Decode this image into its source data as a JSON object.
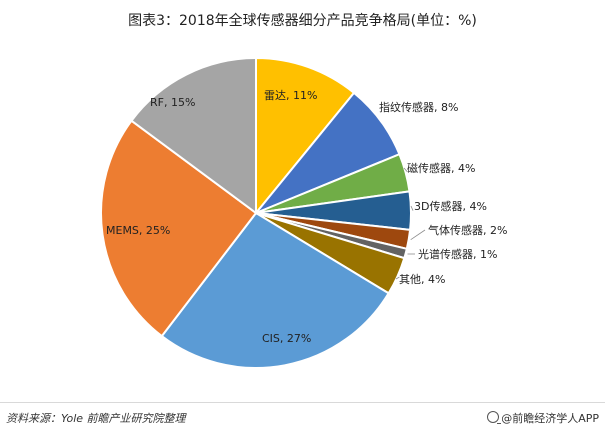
{
  "chart_data": {
    "type": "pie",
    "title": "图表3：2018年全球传感器细分产品竞争格局(单位：%)",
    "slices": [
      {
        "name": "雷达",
        "value": 11,
        "label": "雷达, 11%",
        "color": "#FFC000"
      },
      {
        "name": "指纹传感器",
        "value": 8,
        "label": "指纹传感器, 8%",
        "color": "#4472C4"
      },
      {
        "name": "磁传感器",
        "value": 4,
        "label": "磁传感器, 4%",
        "color": "#70AD47"
      },
      {
        "name": "3D传感器",
        "value": 4,
        "label": "3D传感器, 4%",
        "color": "#255E91"
      },
      {
        "name": "气体传感器",
        "value": 2,
        "label": "气体传感器, 2%",
        "color": "#9E480E"
      },
      {
        "name": "光谱传感器",
        "value": 1,
        "label": "光谱传感器, 1%",
        "color": "#636363"
      },
      {
        "name": "其他",
        "value": 4,
        "label": "其他, 4%",
        "color": "#997300"
      },
      {
        "name": "CIS",
        "value": 27,
        "label": "CIS, 27%",
        "color": "#5B9BD5"
      },
      {
        "name": "MEMS",
        "value": 25,
        "label": "MEMS, 25%",
        "color": "#ED7D31"
      },
      {
        "name": "RF",
        "value": 15,
        "label": "RF, 15%",
        "color": "#A5A5A5"
      }
    ]
  },
  "footer": {
    "source": "资料来源：Yole 前瞻产业研究院整理",
    "brand": "@前瞻经济学人APP"
  }
}
